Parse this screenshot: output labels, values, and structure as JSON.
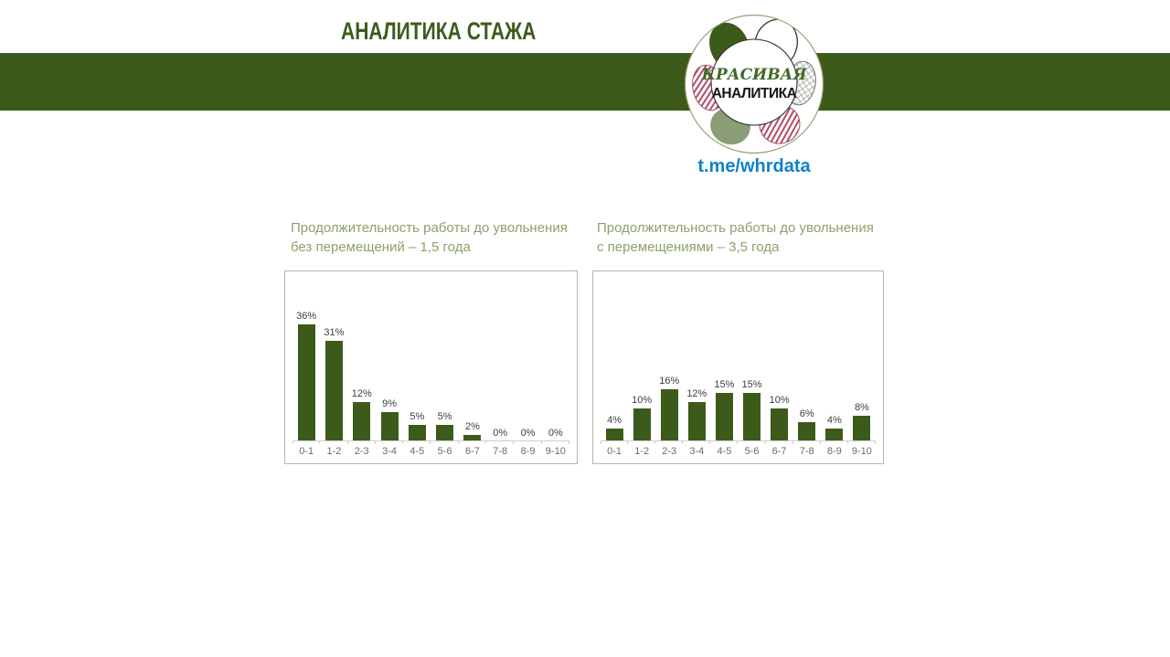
{
  "header": {
    "title": "АНАЛИТИКА СТАЖА",
    "logo": {
      "line1": "КРАСИВАЯ",
      "line2": "АНАЛИТИКА"
    },
    "link": "t.me/whrdata"
  },
  "colors": {
    "dark_green": "#3c5b1b",
    "sage_green_title": "#8ca26b",
    "logo_text_green": "#3e6b28",
    "link_blue": "#0e82c8",
    "value_label_gray": "#3d3d3d",
    "axis_label_gray": "#6b6b6b",
    "panel_border": "#b5b8a4",
    "axis_line": "#cfcfc7"
  },
  "icons": {
    "logo_flower": "flower-petal-logo"
  },
  "chart_data": [
    {
      "type": "bar",
      "title": "Продолжительность работы до увольнения без перемещений – 1,5 года",
      "categories": [
        "0-1",
        "1-2",
        "2-3",
        "3-4",
        "4-5",
        "5-6",
        "6-7",
        "7-8",
        "8-9",
        "9-10"
      ],
      "values": [
        36,
        31,
        12,
        9,
        5,
        5,
        2,
        0,
        0,
        0
      ],
      "unit": "%",
      "xlabel": "",
      "ylabel": "",
      "ylim": [
        0,
        40
      ],
      "grid": false,
      "legend": "none",
      "bar_color": "#3c5b1b"
    },
    {
      "type": "bar",
      "title": "Продолжительность работы до увольнения с перемещениями – 3,5 года",
      "categories": [
        "0-1",
        "1-2",
        "2-3",
        "3-4",
        "4-5",
        "5-6",
        "6-7",
        "7-8",
        "8-9",
        "9-10"
      ],
      "values": [
        4,
        10,
        16,
        12,
        15,
        15,
        10,
        6,
        4,
        8
      ],
      "unit": "%",
      "xlabel": "",
      "ylabel": "",
      "ylim": [
        0,
        40
      ],
      "grid": false,
      "legend": "none",
      "bar_color": "#3c5b1b"
    }
  ]
}
